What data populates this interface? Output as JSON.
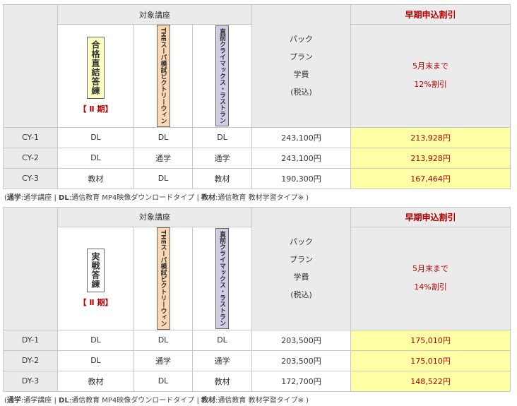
{
  "labels": {
    "target_courses": "対象講座",
    "pack": "パック",
    "plan": "プラン",
    "fee": "学費",
    "tax": "(税込)",
    "early_header": "早期申込割引",
    "term": "【 Ⅱ 期】"
  },
  "courses": {
    "gokaku": "合格直結答練",
    "jissen": "実戦答練",
    "victory": "THEスーパ模試ビクトリーウィン",
    "last": "直前クライマックス・ラストラン"
  },
  "tables": [
    {
      "early_line1": "5月末まで",
      "early_line2": "12%割引",
      "rows": [
        {
          "code": "CY-1",
          "c1": "DL",
          "c2": "DL",
          "c3": "DL",
          "price": "243,100円",
          "discount": "213,928円"
        },
        {
          "code": "CY-2",
          "c1": "DL",
          "c2": "通学",
          "c3": "通学",
          "price": "243,100円",
          "discount": "213,928円"
        },
        {
          "code": "CY-3",
          "c1": "教材",
          "c2": "DL",
          "c3": "教材",
          "price": "190,300円",
          "discount": "167,464円"
        }
      ]
    },
    {
      "early_line1": "5月末まで",
      "early_line2": "14%割引",
      "rows": [
        {
          "code": "DY-1",
          "c1": "DL",
          "c2": "DL",
          "c3": "DL",
          "price": "203,500円",
          "discount": "175,010円"
        },
        {
          "code": "DY-2",
          "c1": "DL",
          "c2": "通学",
          "c3": "通学",
          "price": "203,500円",
          "discount": "175,010円"
        },
        {
          "code": "DY-3",
          "c1": "教材",
          "c2": "DL",
          "c3": "教材",
          "price": "172,700円",
          "discount": "148,522円"
        }
      ]
    }
  ],
  "legend": {
    "open": "(",
    "k1": "通学",
    "v1": ":通学講座 |",
    "k2": "DL",
    "v2": ":通信教育 MP4映像ダウンロードタイプ |",
    "k3": "教材",
    "v3": ":通信教育 教材学習タイプ※ )"
  }
}
